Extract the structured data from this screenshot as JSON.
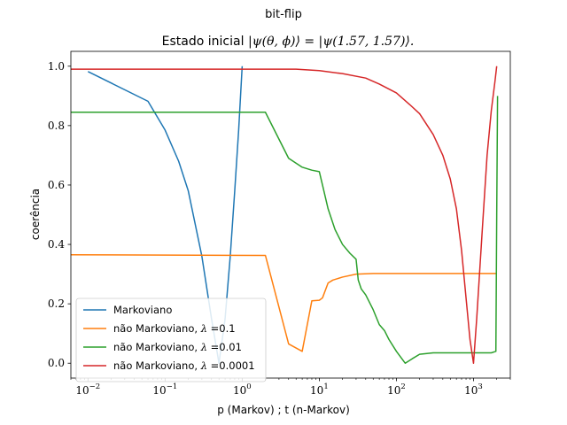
{
  "chart_data": {
    "type": "line",
    "suptitle": "bit-flip",
    "title_prefix": "Estado inicial ",
    "title_math": "|ψ(θ, ϕ)⟩ = |ψ(1.57, 1.57)⟩.",
    "xlabel": "p (Markov) ; t (n-Markov)",
    "ylabel": "coerência",
    "xscale": "log",
    "xlim": [
      0.006,
      3000
    ],
    "ylim": [
      -0.05,
      1.05
    ],
    "x_ticks": [
      {
        "value": 0.01,
        "base": "10",
        "exp": "−2"
      },
      {
        "value": 0.1,
        "base": "10",
        "exp": "−1"
      },
      {
        "value": 1,
        "base": "10",
        "exp": "0"
      },
      {
        "value": 10,
        "base": "10",
        "exp": "1"
      },
      {
        "value": 100,
        "base": "10",
        "exp": "2"
      },
      {
        "value": 1000,
        "base": "10",
        "exp": "3"
      }
    ],
    "y_ticks": [
      {
        "value": 0.0,
        "label": "0.0"
      },
      {
        "value": 0.2,
        "label": "0.2"
      },
      {
        "value": 0.4,
        "label": "0.4"
      },
      {
        "value": 0.6,
        "label": "0.6"
      },
      {
        "value": 0.8,
        "label": "0.8"
      },
      {
        "value": 1.0,
        "label": "1.0"
      }
    ],
    "grid": false,
    "legend_position": "lower-left",
    "series": [
      {
        "name": "Markoviano",
        "color": "#1f77b4",
        "points": [
          [
            0.01,
            0.982
          ],
          [
            0.06,
            0.882
          ],
          [
            0.1,
            0.785
          ],
          [
            0.15,
            0.68
          ],
          [
            0.2,
            0.58
          ],
          [
            0.3,
            0.36
          ],
          [
            0.4,
            0.15
          ],
          [
            0.5,
            0.0
          ],
          [
            0.6,
            0.15
          ],
          [
            0.7,
            0.36
          ],
          [
            0.8,
            0.58
          ],
          [
            0.9,
            0.785
          ],
          [
            1.0,
            1.0
          ]
        ]
      },
      {
        "name": "não Markoviano, λ =0.1",
        "name_prefix": "não Markoviano, ",
        "name_math": "λ",
        "name_suffix": " =0.1",
        "color": "#ff7f0e",
        "points": [
          [
            0.006,
            0.365
          ],
          [
            2,
            0.363
          ],
          [
            4,
            0.065
          ],
          [
            6,
            0.04
          ],
          [
            8,
            0.21
          ],
          [
            10,
            0.212
          ],
          [
            11,
            0.22
          ],
          [
            13,
            0.27
          ],
          [
            15,
            0.28
          ],
          [
            20,
            0.29
          ],
          [
            30,
            0.3
          ],
          [
            50,
            0.302
          ],
          [
            100,
            0.302
          ],
          [
            1000,
            0.302
          ],
          [
            2000,
            0.302
          ]
        ]
      },
      {
        "name": "não Markoviano, λ =0.01",
        "name_prefix": "não Markoviano, ",
        "name_math": "λ",
        "name_suffix": " =0.01",
        "color": "#2ca02c",
        "points": [
          [
            0.006,
            0.845
          ],
          [
            2,
            0.845
          ],
          [
            4,
            0.69
          ],
          [
            6,
            0.66
          ],
          [
            8,
            0.65
          ],
          [
            10,
            0.645
          ],
          [
            11,
            0.6
          ],
          [
            13,
            0.52
          ],
          [
            16,
            0.45
          ],
          [
            20,
            0.4
          ],
          [
            25,
            0.37
          ],
          [
            30,
            0.35
          ],
          [
            32,
            0.28
          ],
          [
            35,
            0.25
          ],
          [
            40,
            0.23
          ],
          [
            50,
            0.18
          ],
          [
            60,
            0.13
          ],
          [
            70,
            0.11
          ],
          [
            80,
            0.08
          ],
          [
            100,
            0.04
          ],
          [
            130,
            0.0
          ],
          [
            160,
            0.015
          ],
          [
            200,
            0.03
          ],
          [
            300,
            0.035
          ],
          [
            1000,
            0.035
          ],
          [
            1700,
            0.035
          ],
          [
            1950,
            0.04
          ],
          [
            2000,
            0.5
          ],
          [
            2050,
            0.9
          ]
        ]
      },
      {
        "name": "não Markoviano, λ =0.0001",
        "name_prefix": "não Markoviano, ",
        "name_math": "λ",
        "name_suffix": " =0.0001",
        "color": "#d62728",
        "points": [
          [
            0.006,
            0.99
          ],
          [
            5,
            0.99
          ],
          [
            10,
            0.985
          ],
          [
            20,
            0.975
          ],
          [
            40,
            0.96
          ],
          [
            60,
            0.94
          ],
          [
            100,
            0.91
          ],
          [
            150,
            0.87
          ],
          [
            200,
            0.84
          ],
          [
            300,
            0.77
          ],
          [
            400,
            0.7
          ],
          [
            500,
            0.62
          ],
          [
            600,
            0.52
          ],
          [
            700,
            0.38
          ],
          [
            800,
            0.22
          ],
          [
            900,
            0.08
          ],
          [
            1000,
            0.0
          ],
          [
            1100,
            0.15
          ],
          [
            1300,
            0.45
          ],
          [
            1500,
            0.7
          ],
          [
            1700,
            0.85
          ],
          [
            1900,
            0.95
          ],
          [
            2000,
            1.0
          ]
        ]
      }
    ]
  }
}
